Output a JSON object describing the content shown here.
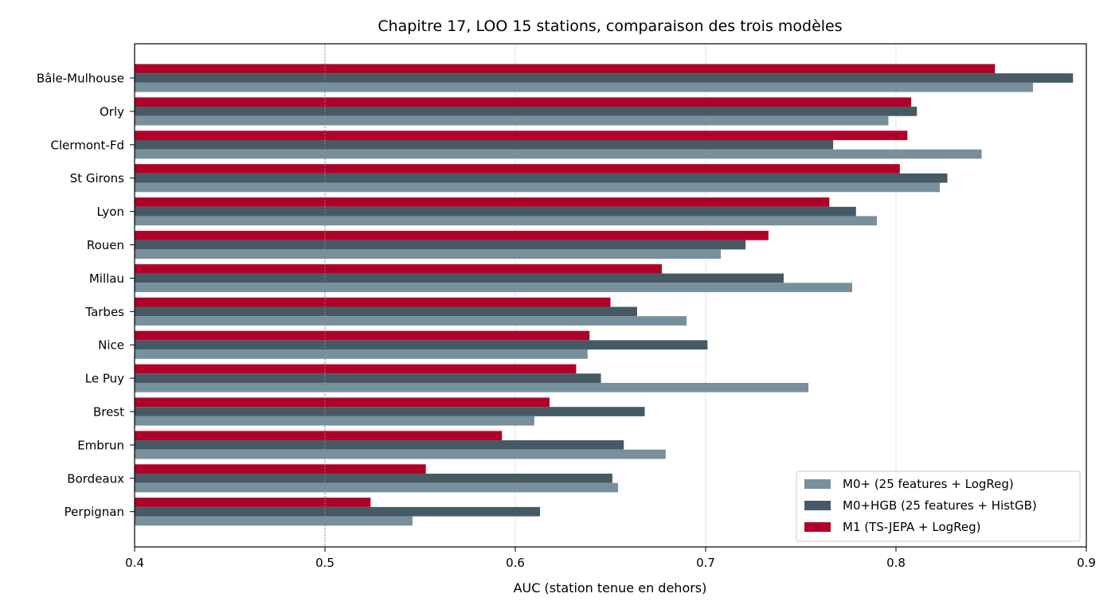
{
  "chart_data": {
    "type": "bar",
    "orientation": "horizontal",
    "title": "Chapitre 17, LOO 15 stations, comparaison des trois modèles",
    "xlabel": "AUC (station tenue en dehors)",
    "ylabel": "",
    "xlim": [
      0.4,
      0.9
    ],
    "xticks": [
      "0.4",
      "0.5",
      "0.6",
      "0.7",
      "0.8",
      "0.9"
    ],
    "reference_line": 0.5,
    "grid": "vertical",
    "legend_position": "bottom-right",
    "categories": [
      "Bâle-Mulhouse",
      "Orly",
      "Clermont-Fd",
      "St Girons",
      "Lyon",
      "Rouen",
      "Millau",
      "Tarbes",
      "Nice",
      "Le Puy",
      "Brest",
      "Embrun",
      "Bordeaux",
      "Perpignan"
    ],
    "series": [
      {
        "name": "M0+ (25 features + LogReg)",
        "color": "#78909c",
        "values": [
          0.872,
          0.796,
          0.845,
          0.823,
          0.79,
          0.708,
          0.777,
          0.69,
          0.638,
          0.754,
          0.61,
          0.679,
          0.654,
          0.546
        ]
      },
      {
        "name": "M0+HGB (25 features + HistGB)",
        "color": "#455a64",
        "values": [
          0.893,
          0.811,
          0.767,
          0.827,
          0.779,
          0.721,
          0.741,
          0.664,
          0.701,
          0.645,
          0.668,
          0.657,
          0.651,
          0.613
        ]
      },
      {
        "name": "M1 (TS-JEPA + LogReg)",
        "color": "#b0002a",
        "values": [
          0.852,
          0.808,
          0.806,
          0.802,
          0.765,
          0.733,
          0.677,
          0.65,
          0.639,
          0.632,
          0.618,
          0.593,
          0.553,
          0.524
        ]
      }
    ]
  }
}
